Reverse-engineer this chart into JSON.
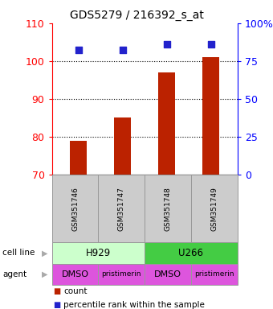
{
  "title": "GDS5279 / 216392_s_at",
  "samples": [
    "GSM351746",
    "GSM351747",
    "GSM351748",
    "GSM351749"
  ],
  "counts": [
    79,
    85,
    97,
    101
  ],
  "percentiles": [
    103,
    103,
    104.5,
    104.5
  ],
  "ylim_left": [
    70,
    110
  ],
  "ylim_right": [
    0,
    100
  ],
  "yticks_left": [
    70,
    80,
    90,
    100,
    110
  ],
  "yticks_right": [
    0,
    25,
    50,
    75,
    100
  ],
  "ytick_labels_right": [
    "0",
    "25",
    "50",
    "75",
    "100%"
  ],
  "bar_color": "#bb2200",
  "dot_color": "#2222cc",
  "cell_lines": [
    "H929",
    "U266"
  ],
  "cell_line_colors": [
    "#ccffcc",
    "#44cc44"
  ],
  "cell_line_spans": [
    [
      0,
      2
    ],
    [
      2,
      4
    ]
  ],
  "agents": [
    "DMSO",
    "pristimerin",
    "DMSO",
    "pristimerin"
  ],
  "agent_color": "#dd55dd",
  "sample_box_color": "#cccccc",
  "background_color": "#ffffff",
  "legend_count_color": "#bb2200",
  "legend_pct_color": "#2222cc"
}
